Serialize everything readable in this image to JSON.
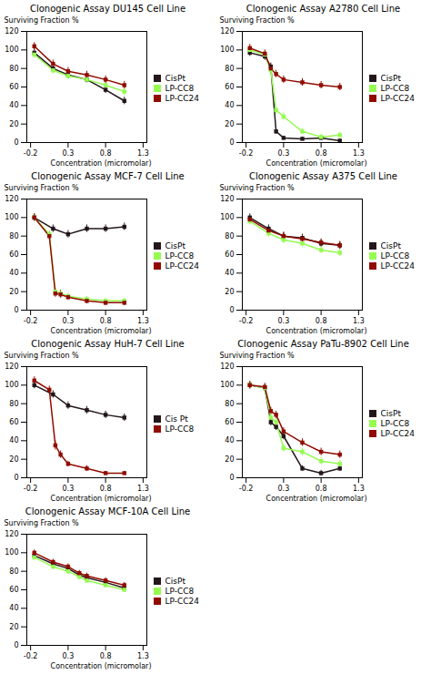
{
  "chart_data": [
    {
      "type": "line",
      "title": "Clonogenic Assay DU145 Cell Line",
      "xlabel": "Concentration (micromolar)",
      "ylabel": "Surviving Fraction %",
      "xlim": [
        -0.25,
        1.35
      ],
      "xticks": [
        -0.2,
        0.3,
        0.8,
        1.3
      ],
      "ylim": [
        0,
        120
      ],
      "yticks": [
        0,
        20,
        40,
        60,
        80,
        100,
        120
      ],
      "marker": "square",
      "legend": "right",
      "grid": false,
      "series": [
        {
          "name": "CisPt",
          "x": [
            -0.15,
            0.1,
            0.3,
            0.55,
            0.8,
            1.05
          ],
          "values": [
            97,
            80,
            73,
            68,
            57,
            45
          ],
          "yerr": [
            4,
            4,
            4,
            4,
            4,
            4
          ]
        },
        {
          "name": "LP-CC8",
          "x": [
            -0.15,
            0.1,
            0.3,
            0.55,
            0.8,
            1.05
          ],
          "values": [
            95,
            78,
            72,
            68,
            62,
            55
          ],
          "yerr": [
            4,
            4,
            4,
            4,
            4,
            4
          ]
        },
        {
          "name": "LP-CC24",
          "x": [
            -0.15,
            0.1,
            0.3,
            0.55,
            0.8,
            1.05
          ],
          "values": [
            104,
            85,
            77,
            73,
            68,
            62
          ],
          "yerr": [
            4,
            4,
            4,
            4,
            4,
            4
          ]
        }
      ]
    },
    {
      "type": "line",
      "title": "Clonogenic Assay A2780 Cell Line",
      "xlabel": "Concentration (micromolar)",
      "ylabel": "Surviving Fraction %",
      "xlim": [
        -0.25,
        1.35
      ],
      "xticks": [
        -0.2,
        0.3,
        0.8,
        1.3
      ],
      "ylim": [
        0,
        120
      ],
      "yticks": [
        0,
        20,
        40,
        60,
        80,
        100,
        120
      ],
      "marker": "square",
      "legend": "right",
      "grid": false,
      "series": [
        {
          "name": "CisPt",
          "x": [
            -0.15,
            0.05,
            0.13,
            0.2,
            0.3,
            0.55,
            0.8,
            1.05
          ],
          "values": [
            97,
            93,
            82,
            12,
            5,
            4,
            5,
            2
          ],
          "yerr": [
            4,
            4,
            4,
            3,
            2,
            2,
            2,
            2
          ]
        },
        {
          "name": "LP-CC8",
          "x": [
            -0.15,
            0.05,
            0.13,
            0.2,
            0.3,
            0.55,
            0.8,
            1.05
          ],
          "values": [
            100,
            95,
            78,
            35,
            28,
            12,
            6,
            8
          ],
          "yerr": [
            4,
            4,
            4,
            4,
            4,
            3,
            3,
            3
          ]
        },
        {
          "name": "LP-CC24",
          "x": [
            -0.15,
            0.05,
            0.13,
            0.2,
            0.3,
            0.55,
            0.8,
            1.05
          ],
          "values": [
            102,
            96,
            80,
            74,
            68,
            65,
            62,
            60
          ],
          "yerr": [
            4,
            4,
            4,
            4,
            4,
            4,
            4,
            4
          ]
        }
      ]
    },
    {
      "type": "line",
      "title": "Clonogenic Assay MCF-7 Cell Line",
      "xlabel": "Concentration (micromolar)",
      "ylabel": "Surviving Fraction %",
      "xlim": [
        -0.25,
        1.35
      ],
      "xticks": [
        -0.2,
        0.3,
        0.8,
        1.3
      ],
      "ylim": [
        0,
        120
      ],
      "yticks": [
        0,
        20,
        40,
        60,
        80,
        100,
        120
      ],
      "marker": "square",
      "legend": "right",
      "grid": false,
      "series": [
        {
          "name": "CisPt",
          "x": [
            -0.15,
            0.1,
            0.3,
            0.55,
            0.8,
            1.05
          ],
          "values": [
            100,
            88,
            82,
            88,
            88,
            90
          ],
          "yerr": [
            4,
            4,
            4,
            4,
            4,
            4
          ]
        },
        {
          "name": "LP-CC8",
          "x": [
            -0.15,
            0.05,
            0.13,
            0.2,
            0.3,
            0.55,
            0.8,
            1.05
          ],
          "values": [
            100,
            82,
            20,
            18,
            15,
            12,
            10,
            10
          ],
          "yerr": [
            4,
            4,
            4,
            4,
            3,
            3,
            3,
            3
          ]
        },
        {
          "name": "LP-CC24",
          "x": [
            -0.15,
            0.05,
            0.13,
            0.2,
            0.3,
            0.55,
            0.8,
            1.05
          ],
          "values": [
            100,
            80,
            18,
            17,
            14,
            10,
            8,
            8
          ],
          "yerr": [
            4,
            4,
            4,
            4,
            3,
            3,
            3,
            3
          ]
        }
      ]
    },
    {
      "type": "line",
      "title": "Clonogenic Assay A375 Cell Line",
      "xlabel": "Concentration (micromolar)",
      "ylabel": "Surviving Fraction %",
      "xlim": [
        -0.25,
        1.35
      ],
      "xticks": [
        -0.2,
        0.3,
        0.8,
        1.3
      ],
      "ylim": [
        0,
        120
      ],
      "yticks": [
        0,
        20,
        40,
        60,
        80,
        100,
        120
      ],
      "marker": "square",
      "legend": "right",
      "grid": false,
      "series": [
        {
          "name": "CisPt",
          "x": [
            -0.15,
            0.1,
            0.3,
            0.55,
            0.8,
            1.05
          ],
          "values": [
            100,
            88,
            80,
            78,
            72,
            70
          ],
          "yerr": [
            4,
            4,
            4,
            4,
            4,
            4
          ]
        },
        {
          "name": "LP-CC8",
          "x": [
            -0.15,
            0.1,
            0.3,
            0.55,
            0.8,
            1.05
          ],
          "values": [
            96,
            83,
            76,
            72,
            65,
            62
          ],
          "yerr": [
            4,
            4,
            4,
            4,
            4,
            4
          ]
        },
        {
          "name": "LP-CC24",
          "x": [
            -0.15,
            0.1,
            0.3,
            0.55,
            0.8,
            1.05
          ],
          "values": [
            98,
            86,
            80,
            77,
            73,
            70
          ],
          "yerr": [
            4,
            4,
            4,
            4,
            4,
            4
          ]
        }
      ]
    },
    {
      "type": "line",
      "title": "Clonogenic Assay HuH-7 Cell Line",
      "xlabel": "Concentration (micromolar)",
      "ylabel": "Surviving Fraction %",
      "xlim": [
        -0.25,
        1.35
      ],
      "xticks": [
        -0.2,
        0.3,
        0.8,
        1.3
      ],
      "ylim": [
        0,
        120
      ],
      "yticks": [
        0,
        20,
        40,
        60,
        80,
        100,
        120
      ],
      "marker": "square",
      "legend": "right",
      "grid": false,
      "series": [
        {
          "name": "Cis Pt",
          "x": [
            -0.15,
            0.1,
            0.3,
            0.55,
            0.8,
            1.05
          ],
          "values": [
            100,
            90,
            78,
            73,
            68,
            65
          ],
          "yerr": [
            4,
            4,
            4,
            4,
            4,
            4
          ]
        },
        {
          "name": "LP-CC8",
          "x": [
            -0.15,
            0.05,
            0.13,
            0.2,
            0.3,
            0.55,
            0.8,
            1.05
          ],
          "values": [
            105,
            95,
            35,
            25,
            15,
            10,
            5,
            5
          ],
          "yerr": [
            4,
            4,
            5,
            4,
            3,
            3,
            2,
            2
          ]
        }
      ]
    },
    {
      "type": "line",
      "title": "Clonogenic Assay PaTu-8902 Cell Line",
      "xlabel": "Concentration (micromolar)",
      "ylabel": "Surviving Fraction %",
      "xlim": [
        -0.25,
        1.35
      ],
      "xticks": [
        -0.2,
        0.3,
        0.8,
        1.3
      ],
      "ylim": [
        0,
        120
      ],
      "yticks": [
        0,
        20,
        40,
        60,
        80,
        100,
        120
      ],
      "marker": "square",
      "legend": "right",
      "grid": false,
      "series": [
        {
          "name": "CisPt",
          "x": [
            -0.15,
            0.05,
            0.13,
            0.2,
            0.3,
            0.55,
            0.8,
            1.05
          ],
          "values": [
            100,
            97,
            60,
            55,
            45,
            10,
            5,
            10
          ],
          "yerr": [
            4,
            4,
            4,
            4,
            4,
            3,
            3,
            3
          ]
        },
        {
          "name": "LP-CC8",
          "x": [
            -0.15,
            0.05,
            0.13,
            0.2,
            0.3,
            0.55,
            0.8,
            1.05
          ],
          "values": [
            100,
            97,
            65,
            60,
            32,
            28,
            18,
            15
          ],
          "yerr": [
            4,
            4,
            4,
            4,
            4,
            4,
            4,
            4
          ]
        },
        {
          "name": "LP-CC24",
          "x": [
            -0.15,
            0.05,
            0.13,
            0.2,
            0.3,
            0.55,
            0.8,
            1.05
          ],
          "values": [
            100,
            98,
            72,
            68,
            50,
            38,
            28,
            25
          ],
          "yerr": [
            4,
            4,
            4,
            4,
            4,
            4,
            4,
            4
          ]
        }
      ]
    },
    {
      "type": "line",
      "title": "Clonogenic Assay MCF-10A Cell Line",
      "xlabel": "Concentration (micromolar)",
      "ylabel": "Surviving Fraction %",
      "xlim": [
        -0.25,
        1.35
      ],
      "xticks": [
        -0.2,
        0.3,
        0.8,
        1.3
      ],
      "ylim": [
        0,
        120
      ],
      "yticks": [
        0,
        20,
        40,
        60,
        80,
        100,
        120
      ],
      "marker": "square",
      "legend": "right",
      "grid": false,
      "series": [
        {
          "name": "CisPt",
          "x": [
            -0.15,
            0.1,
            0.3,
            0.45,
            0.55,
            0.8,
            1.05
          ],
          "values": [
            97,
            88,
            83,
            76,
            73,
            68,
            62
          ],
          "yerr": [
            3,
            3,
            3,
            3,
            3,
            3,
            3
          ]
        },
        {
          "name": "LP-CC8",
          "x": [
            -0.15,
            0.1,
            0.3,
            0.45,
            0.55,
            0.8,
            1.05
          ],
          "values": [
            95,
            85,
            80,
            74,
            70,
            65,
            60
          ],
          "yerr": [
            3,
            3,
            3,
            3,
            3,
            3,
            3
          ]
        },
        {
          "name": "LP-CC24",
          "x": [
            -0.15,
            0.1,
            0.3,
            0.45,
            0.55,
            0.8,
            1.05
          ],
          "values": [
            100,
            90,
            85,
            78,
            75,
            70,
            65
          ],
          "yerr": [
            3,
            3,
            3,
            3,
            3,
            3,
            3
          ]
        }
      ]
    }
  ]
}
